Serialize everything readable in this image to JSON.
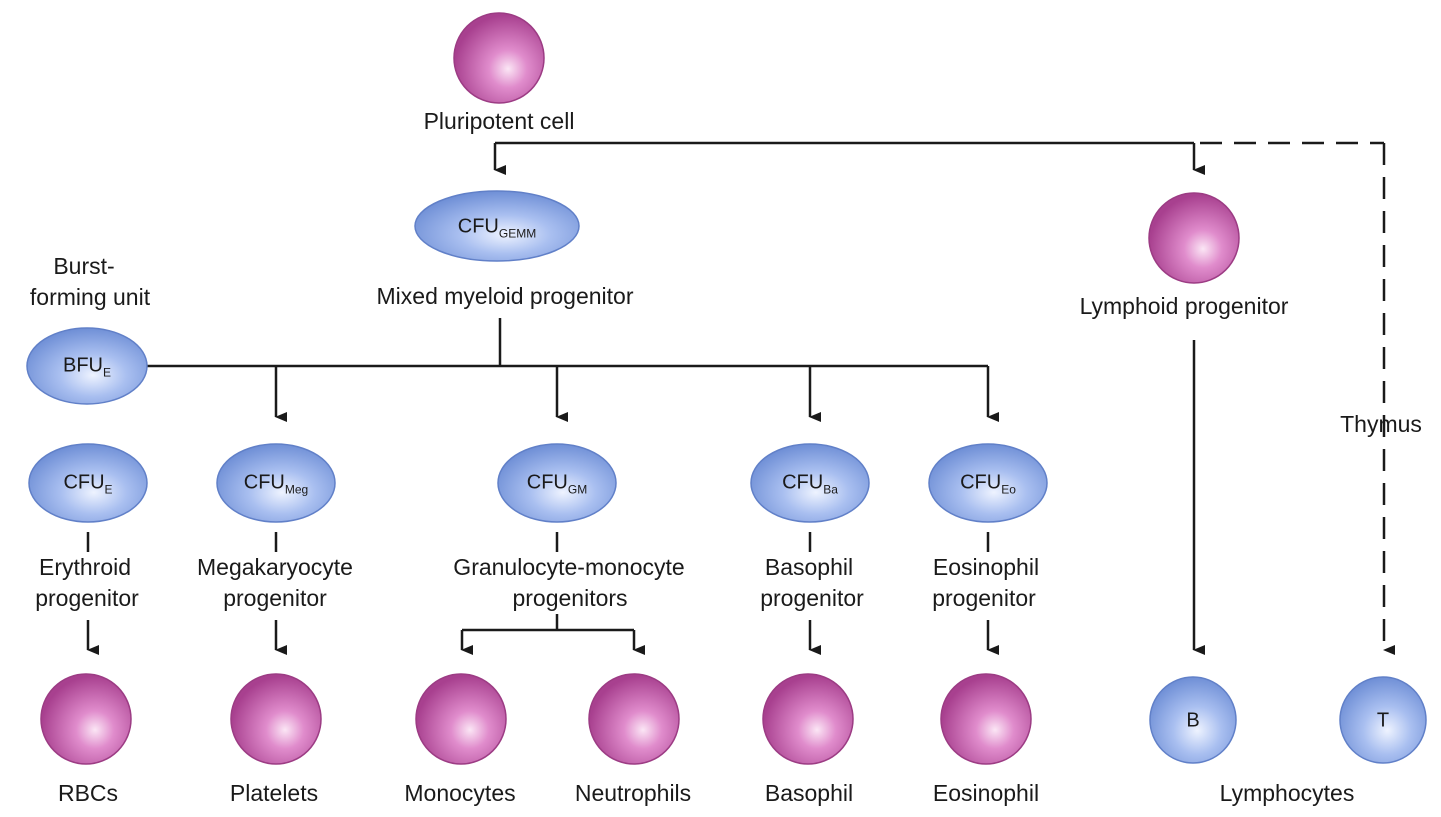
{
  "pluripotent": {
    "label": "Pluripotent cell"
  },
  "cfu_gemm": {
    "code": "CFU",
    "sub": "GEMM",
    "label": "Mixed myeloid progenitor"
  },
  "bfu_e": {
    "heading_1": "Burst-",
    "heading_2": "forming unit",
    "code": "BFU",
    "sub": "E"
  },
  "lymphoid": {
    "label": "Lymphoid progenitor"
  },
  "thymus": {
    "label": "Thymus"
  },
  "progenitors": [
    {
      "code": "CFU",
      "sub": "E",
      "label_1": "Erythroid",
      "label_2": "progenitor"
    },
    {
      "code": "CFU",
      "sub": "Meg",
      "label_1": "Megakaryocyte",
      "label_2": "progenitor"
    },
    {
      "code": "CFU",
      "sub": "GM",
      "label_1": "Granulocyte-monocyte",
      "label_2": "progenitors"
    },
    {
      "code": "CFU",
      "sub": "Ba",
      "label_1": "Basophil",
      "label_2": "progenitor"
    },
    {
      "code": "CFU",
      "sub": "Eo",
      "label_1": "Eosinophil",
      "label_2": "progenitor"
    }
  ],
  "mature": [
    {
      "label": "RBCs"
    },
    {
      "label": "Platelets"
    },
    {
      "label": "Monocytes"
    },
    {
      "label": "Neutrophils"
    },
    {
      "label": "Basophil"
    },
    {
      "label": "Eosinophil"
    }
  ],
  "lymphocytes": {
    "b": "B",
    "t": "T",
    "label": "Lymphocytes"
  },
  "colors": {
    "magenta_cell": "#b14a99",
    "blue_cell": "#7f9ede",
    "line": "#1a1a1a"
  }
}
